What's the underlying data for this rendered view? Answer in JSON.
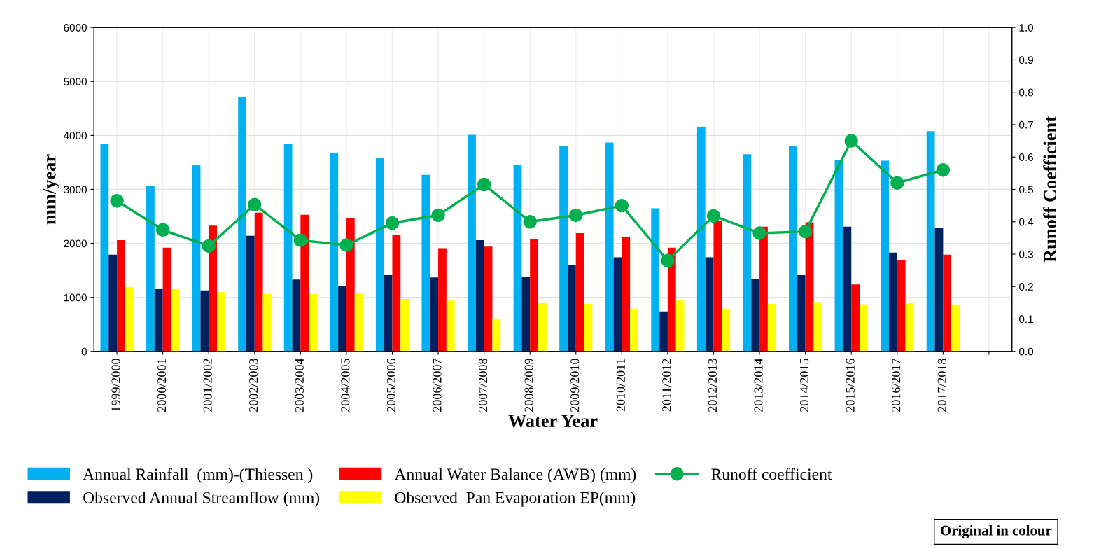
{
  "chart_data": {
    "type": "bar",
    "xlabel": "Water Year",
    "ylabel": "mm/year",
    "y2label": "Runoff Coefficient",
    "categories": [
      "1999/2000",
      "2000/2001",
      "2001/2002",
      "2002/2003",
      "2003/2004",
      "2004/2005",
      "2005/2006",
      "2006/2007",
      "2007/2008",
      "2008/2009",
      "2009/2010",
      "2010/2011",
      "2011/2012",
      "2012/2013",
      "2013/2014",
      "2014/2015",
      "2015/2016",
      "2016/2017",
      "2017/2018",
      null
    ],
    "series": [
      {
        "name": "Annual Rainfall  (mm)-(Thiessen )",
        "color": "#00b0f0",
        "values": [
          3840,
          3070,
          3460,
          4710,
          3850,
          3670,
          3590,
          3270,
          4010,
          3460,
          3800,
          3870,
          2650,
          4150,
          3650,
          3800,
          3540,
          3530,
          4080,
          null
        ]
      },
      {
        "name": "Observed Annual Streamflow (mm)",
        "color": "#002060",
        "values": [
          1790,
          1150,
          1130,
          2140,
          1330,
          1210,
          1420,
          1370,
          2060,
          1380,
          1600,
          1740,
          740,
          1740,
          1340,
          1410,
          2310,
          1830,
          2290,
          null
        ]
      },
      {
        "name": "Annual Water Balance (AWB) (mm)",
        "color": "#ff0000",
        "values": [
          2060,
          1920,
          2330,
          2570,
          2530,
          2460,
          2160,
          1910,
          1940,
          2080,
          2190,
          2120,
          1920,
          2410,
          2310,
          2390,
          1240,
          1690,
          1790,
          null
        ]
      },
      {
        "name": "Observed  Pan Evaporation EP(mm)",
        "color": "#ffff00",
        "values": [
          1190,
          1160,
          1100,
          1060,
          1060,
          1080,
          970,
          940,
          590,
          900,
          880,
          790,
          940,
          790,
          880,
          910,
          870,
          900,
          870,
          null
        ]
      },
      {
        "name": "Runoff coefficient",
        "color": "#00b050",
        "type": "line",
        "axis": "y2",
        "marker": "circle",
        "values": [
          0.465,
          0.375,
          0.325,
          0.453,
          0.343,
          0.328,
          0.396,
          0.42,
          0.515,
          0.4,
          0.42,
          0.45,
          0.28,
          0.418,
          0.365,
          0.37,
          0.65,
          0.52,
          0.56,
          null
        ]
      }
    ],
    "ylim": [
      0,
      6000
    ],
    "yticks": [
      0,
      1000,
      2000,
      3000,
      4000,
      5000,
      6000
    ],
    "y2lim": [
      0,
      1
    ],
    "y2ticks": [
      {
        "value": 0,
        "label": "0.0"
      },
      {
        "value": 0.1,
        "label": "0.1"
      },
      {
        "value": 0.2,
        "label": "0.2"
      },
      {
        "value": 0.3,
        "label": "0.3"
      },
      {
        "value": 0.4,
        "label": "0.4"
      },
      {
        "value": 0.5,
        "label": "0.5"
      },
      {
        "value": 0.6,
        "label": "0.6"
      },
      {
        "value": 0.7,
        "label": "0.7"
      },
      {
        "value": 0.8,
        "label": "0.8"
      },
      {
        "value": 0.9,
        "label": "0.9"
      },
      {
        "value": 1,
        "label": "1.0"
      }
    ],
    "grid": true,
    "legend": "bottom",
    "annotations": [
      "Original in colour"
    ]
  }
}
